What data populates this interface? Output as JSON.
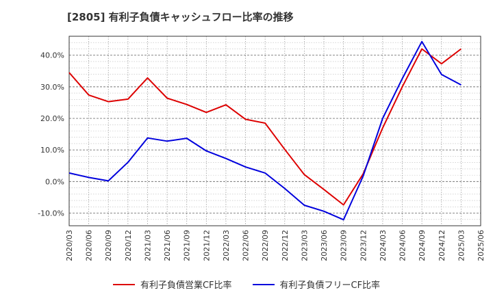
{
  "title": "[2805]  有利子負債キャッシュフロー比率の推移",
  "chart_data": {
    "type": "line",
    "title": "[2805]  有利子負債キャッシュフロー比率の推移",
    "x": [
      "2020/03",
      "2020/06",
      "2020/09",
      "2020/12",
      "2021/03",
      "2021/06",
      "2021/09",
      "2021/12",
      "2022/03",
      "2022/06",
      "2022/09",
      "2022/12",
      "2023/03",
      "2023/06",
      "2023/09",
      "2023/12",
      "2024/03",
      "2024/06",
      "2024/09",
      "2024/12",
      "2025/03",
      "2025/06"
    ],
    "ylim": [
      -14,
      46
    ],
    "yticks": [
      "-10.0%",
      "0.0%",
      "10.0%",
      "20.0%",
      "30.0%",
      "40.0%"
    ],
    "ytick_values": [
      -10,
      0,
      10,
      20,
      30,
      40
    ],
    "grid": true,
    "legend_position": "bottom",
    "series": [
      {
        "name": "有利子負債営業CF比率",
        "color": "#dd0000",
        "values": [
          34.5,
          27.4,
          25.3,
          26.1,
          32.8,
          26.4,
          24.4,
          21.9,
          24.3,
          19.7,
          18.5,
          10.2,
          2.2,
          -2.5,
          -7.4,
          2.4,
          17.0,
          30.0,
          42.0,
          37.3,
          42.0,
          null
        ]
      },
      {
        "name": "有利子負債フリーCF比率",
        "color": "#0000dd",
        "values": [
          2.7,
          1.3,
          0.2,
          6.1,
          13.8,
          12.8,
          13.7,
          9.7,
          7.3,
          4.6,
          2.7,
          -2.2,
          -7.5,
          -9.4,
          -12.1,
          1.7,
          20.0,
          32.6,
          44.3,
          33.9,
          30.6,
          null
        ]
      }
    ]
  }
}
